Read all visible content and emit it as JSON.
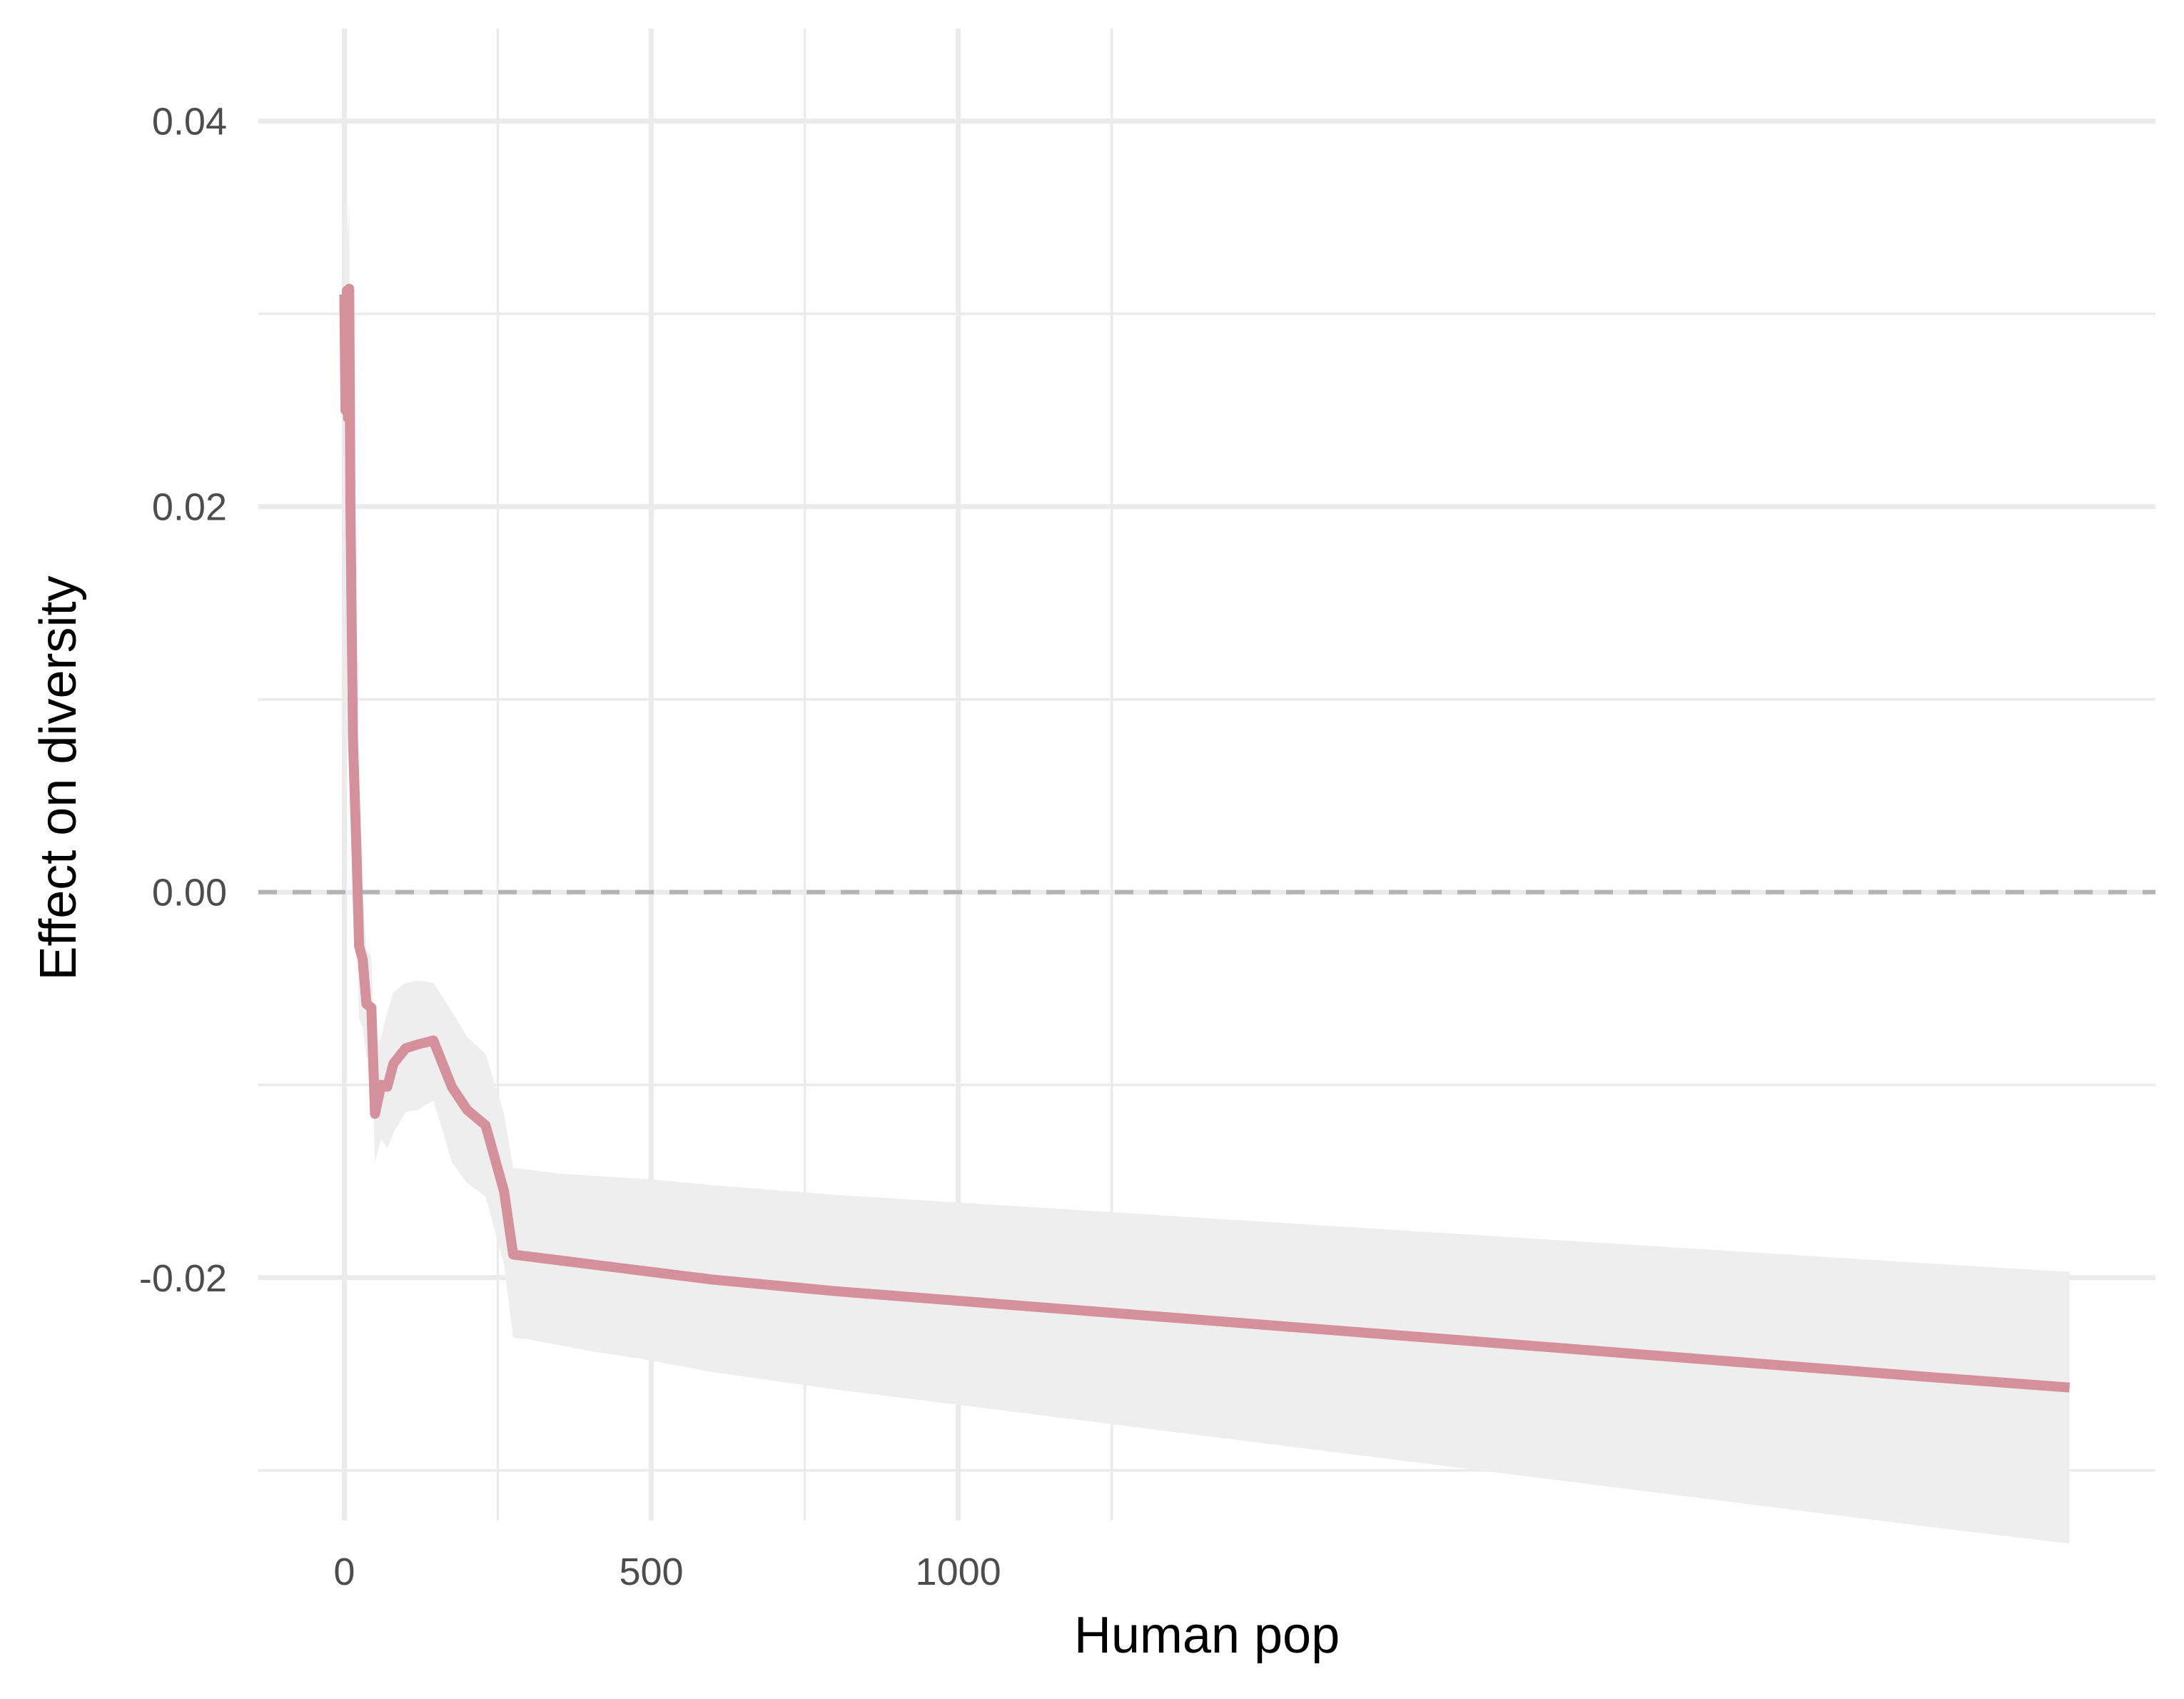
{
  "chart_data": {
    "type": "line",
    "title": "",
    "xlabel": "Human pop",
    "ylabel": "Effect on diversity",
    "xlim": [
      -140,
      2950
    ],
    "ylim": [
      -0.0326,
      0.0448
    ],
    "x_ticks": [
      0,
      500,
      1000
    ],
    "x_tick_labels": [
      "0",
      "500",
      "1000"
    ],
    "x_minor_ticks": [
      250,
      750,
      1250
    ],
    "y_ticks": [
      -0.02,
      0.0,
      0.02,
      0.04
    ],
    "y_tick_labels": [
      "-0.02",
      "0.00",
      "0.02",
      "0.04"
    ],
    "y_minor_ticks": [
      -0.03,
      -0.01,
      0.01,
      0.03
    ],
    "grid": true,
    "legend": "none",
    "reference_line": {
      "y": 0.0,
      "style": "dashed",
      "color": "#b3b3b3"
    },
    "series": [
      {
        "line_color": "#d4909b",
        "band_color": "#eeeeee",
        "x": [
          0,
          2,
          4,
          6,
          8,
          10,
          14,
          20,
          24,
          30,
          36,
          44,
          50,
          60,
          70,
          80,
          100,
          120,
          145,
          175,
          200,
          230,
          260,
          275,
          300,
          350,
          400,
          500,
          600,
          800,
          1000,
          1200,
          1400,
          1600,
          1800,
          2000,
          2200,
          2400,
          2600,
          2810
        ],
        "y": [
          0.031,
          0.025,
          0.0312,
          0.0246,
          0.0313,
          0.02,
          0.008,
          0.002,
          -0.0028,
          -0.0035,
          -0.0058,
          -0.006,
          -0.0115,
          -0.01,
          -0.0101,
          -0.0089,
          -0.0081,
          -0.0079,
          -0.0077,
          -0.0101,
          -0.0113,
          -0.0121,
          -0.0155,
          -0.0188,
          -0.0189,
          -0.0191,
          -0.0193,
          -0.0197,
          -0.0201,
          -0.0207,
          -0.0212,
          -0.0217,
          -0.0222,
          -0.0227,
          -0.0232,
          -0.0237,
          -0.0242,
          -0.0247,
          -0.0252,
          -0.0257
        ],
        "upper": [
          0.036,
          0.034,
          0.036,
          0.034,
          0.036,
          0.025,
          0.012,
          0.006,
          0.001,
          0.0,
          -0.003,
          -0.0034,
          -0.0082,
          -0.0075,
          -0.0062,
          -0.0052,
          -0.0047,
          -0.0046,
          -0.0047,
          -0.0062,
          -0.0075,
          -0.0084,
          -0.0115,
          -0.0143,
          -0.0144,
          -0.0146,
          -0.0147,
          -0.0149,
          -0.0152,
          -0.0157,
          -0.0161,
          -0.0165,
          -0.0169,
          -0.0173,
          -0.0177,
          -0.0181,
          -0.0185,
          -0.0189,
          -0.0193,
          -0.0197
        ],
        "lower": [
          0.026,
          0.016,
          0.026,
          0.015,
          0.026,
          0.015,
          0.004,
          -0.002,
          -0.0066,
          -0.007,
          -0.0086,
          -0.0086,
          -0.014,
          -0.0128,
          -0.0133,
          -0.0125,
          -0.0114,
          -0.0113,
          -0.0108,
          -0.014,
          -0.0151,
          -0.0158,
          -0.0193,
          -0.0231,
          -0.0232,
          -0.0235,
          -0.0238,
          -0.0243,
          -0.0249,
          -0.0258,
          -0.0266,
          -0.0274,
          -0.0282,
          -0.029,
          -0.0298,
          -0.0306,
          -0.0314,
          -0.0322,
          -0.033,
          -0.0338
        ]
      }
    ]
  }
}
